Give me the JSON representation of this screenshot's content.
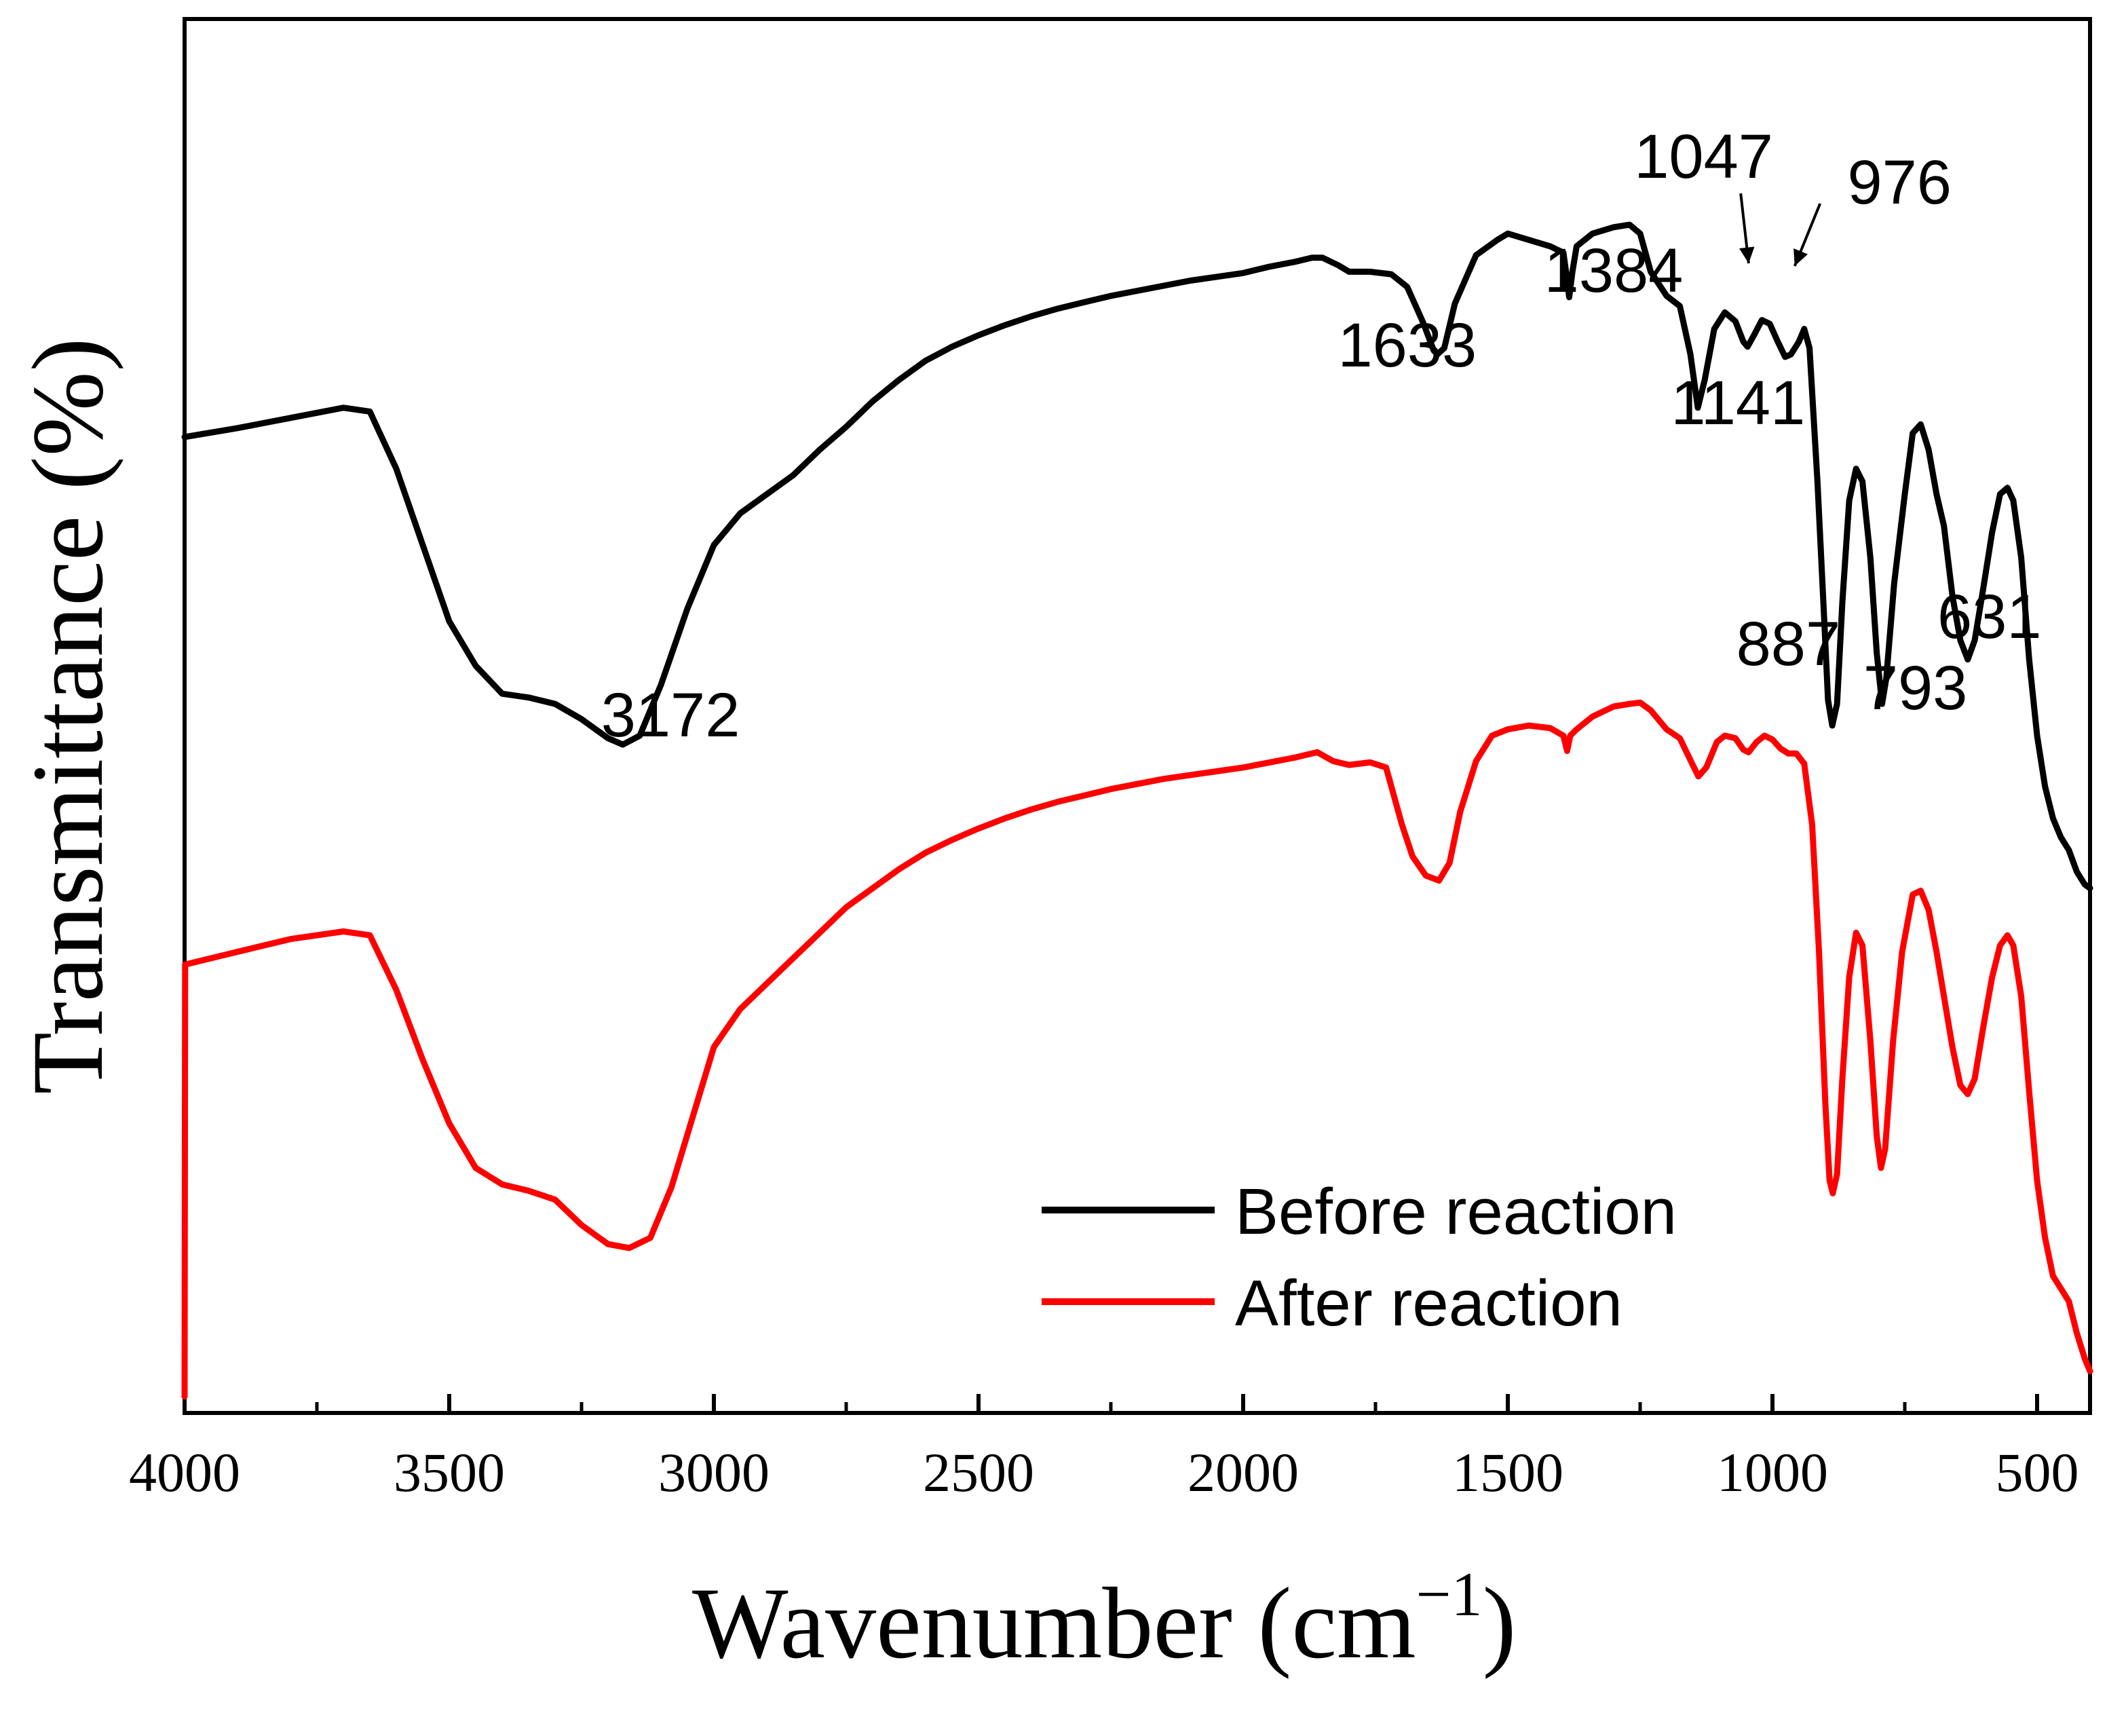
{
  "chart_data": {
    "type": "line",
    "xlabel": "Wavenumber (cm",
    "xlabel_sup": "−1",
    "xlabel_close": ")",
    "ylabel": "Transmittance (%)",
    "xlim": [
      4000,
      400
    ],
    "ylim": [
      0,
      100
    ],
    "x_reversed": true,
    "y_ticks_shown": false,
    "grid": false,
    "legend_placement": "lower-right",
    "x_ticks": [
      "4000",
      "3500",
      "3000",
      "2500",
      "2000",
      "1500",
      "1000",
      "500"
    ],
    "x_tick_values": [
      4000,
      3500,
      3000,
      2500,
      2000,
      1500,
      1000,
      500
    ],
    "series": [
      {
        "name": "Before reaction",
        "color": "#000000",
        "points": [
          [
            4000,
            75.5
          ],
          [
            3900,
            76.2
          ],
          [
            3800,
            77.0
          ],
          [
            3700,
            77.8
          ],
          [
            3650,
            77.5
          ],
          [
            3600,
            73
          ],
          [
            3550,
            67
          ],
          [
            3500,
            61
          ],
          [
            3450,
            57.5
          ],
          [
            3400,
            55.3
          ],
          [
            3350,
            55.0
          ],
          [
            3300,
            54.5
          ],
          [
            3250,
            53.3
          ],
          [
            3200,
            51.8
          ],
          [
            3172,
            51.3
          ],
          [
            3140,
            52.0
          ],
          [
            3100,
            56
          ],
          [
            3050,
            62
          ],
          [
            3000,
            67
          ],
          [
            2950,
            69.5
          ],
          [
            2900,
            71
          ],
          [
            2850,
            72.5
          ],
          [
            2800,
            74.5
          ],
          [
            2750,
            76.3
          ],
          [
            2700,
            78.3
          ],
          [
            2650,
            80
          ],
          [
            2600,
            81.5
          ],
          [
            2550,
            82.6
          ],
          [
            2500,
            83.5
          ],
          [
            2450,
            84.3
          ],
          [
            2400,
            85
          ],
          [
            2350,
            85.6
          ],
          [
            2300,
            86.1
          ],
          [
            2250,
            86.6
          ],
          [
            2200,
            87.0
          ],
          [
            2150,
            87.4
          ],
          [
            2100,
            87.8
          ],
          [
            2050,
            88.1
          ],
          [
            2000,
            88.4
          ],
          [
            1950,
            88.9
          ],
          [
            1900,
            89.3
          ],
          [
            1870,
            89.6
          ],
          [
            1850,
            89.6
          ],
          [
            1820,
            89.0
          ],
          [
            1800,
            88.5
          ],
          [
            1760,
            88.5
          ],
          [
            1720,
            88.3
          ],
          [
            1690,
            87.3
          ],
          [
            1660,
            84.5
          ],
          [
            1640,
            82.3
          ],
          [
            1633,
            82.0
          ],
          [
            1620,
            82.5
          ],
          [
            1600,
            86.0
          ],
          [
            1560,
            89.8
          ],
          [
            1520,
            91.0
          ],
          [
            1500,
            91.5
          ],
          [
            1460,
            91.0
          ],
          [
            1420,
            90.5
          ],
          [
            1395,
            90.0
          ],
          [
            1390,
            88.5
          ],
          [
            1384,
            86.5
          ],
          [
            1378,
            88.5
          ],
          [
            1370,
            90.5
          ],
          [
            1340,
            91.5
          ],
          [
            1300,
            92.0
          ],
          [
            1270,
            92.2
          ],
          [
            1250,
            91.5
          ],
          [
            1230,
            88.5
          ],
          [
            1200,
            86.6
          ],
          [
            1175,
            85.8
          ],
          [
            1155,
            82.0
          ],
          [
            1141,
            77.8
          ],
          [
            1128,
            80.0
          ],
          [
            1110,
            84.0
          ],
          [
            1090,
            85.3
          ],
          [
            1070,
            84.6
          ],
          [
            1055,
            83.0
          ],
          [
            1047,
            82.6
          ],
          [
            1035,
            83.5
          ],
          [
            1020,
            84.7
          ],
          [
            1005,
            84.4
          ],
          [
            990,
            83.0
          ],
          [
            976,
            81.8
          ],
          [
            965,
            82.0
          ],
          [
            950,
            83.0
          ],
          [
            940,
            84.0
          ],
          [
            930,
            82.5
          ],
          [
            915,
            72
          ],
          [
            902,
            61
          ],
          [
            895,
            54.8
          ],
          [
            887,
            52.8
          ],
          [
            878,
            54.5
          ],
          [
            868,
            62.5
          ],
          [
            855,
            70.5
          ],
          [
            842,
            73.0
          ],
          [
            830,
            72.0
          ],
          [
            815,
            66
          ],
          [
            803,
            58.5
          ],
          [
            793,
            54.5
          ],
          [
            785,
            56.5
          ],
          [
            770,
            64
          ],
          [
            750,
            71
          ],
          [
            735,
            75.8
          ],
          [
            720,
            76.5
          ],
          [
            705,
            74.5
          ],
          [
            690,
            71.0
          ],
          [
            676,
            68.5
          ],
          [
            660,
            63
          ],
          [
            645,
            59.5
          ],
          [
            631,
            58.0
          ],
          [
            618,
            59.5
          ],
          [
            602,
            63.5
          ],
          [
            585,
            68.0
          ],
          [
            570,
            71.0
          ],
          [
            556,
            71.5
          ],
          [
            545,
            70.5
          ],
          [
            530,
            66
          ],
          [
            515,
            58
          ],
          [
            500,
            52
          ],
          [
            485,
            48
          ],
          [
            470,
            45.5
          ],
          [
            455,
            44.0
          ],
          [
            440,
            43.0
          ],
          [
            425,
            41.3
          ],
          [
            410,
            40.3
          ],
          [
            400,
            40.0
          ]
        ]
      },
      {
        "name": "After reaction",
        "color": "#ff0000",
        "points": [
          [
            4000,
            0
          ],
          [
            3999,
            34.0
          ],
          [
            3900,
            35.0
          ],
          [
            3800,
            36.0
          ],
          [
            3700,
            36.6
          ],
          [
            3650,
            36.3
          ],
          [
            3600,
            32
          ],
          [
            3550,
            26.5
          ],
          [
            3500,
            21.5
          ],
          [
            3450,
            18.0
          ],
          [
            3400,
            16.7
          ],
          [
            3350,
            16.2
          ],
          [
            3300,
            15.5
          ],
          [
            3250,
            13.5
          ],
          [
            3200,
            12.0
          ],
          [
            3160,
            11.7
          ],
          [
            3120,
            12.5
          ],
          [
            3080,
            16.5
          ],
          [
            3040,
            22.0
          ],
          [
            3000,
            27.5
          ],
          [
            2950,
            30.5
          ],
          [
            2900,
            32.5
          ],
          [
            2850,
            34.5
          ],
          [
            2800,
            36.5
          ],
          [
            2750,
            38.5
          ],
          [
            2700,
            40.0
          ],
          [
            2650,
            41.5
          ],
          [
            2600,
            42.8
          ],
          [
            2550,
            43.8
          ],
          [
            2500,
            44.7
          ],
          [
            2450,
            45.5
          ],
          [
            2400,
            46.2
          ],
          [
            2350,
            46.8
          ],
          [
            2300,
            47.3
          ],
          [
            2250,
            47.8
          ],
          [
            2200,
            48.2
          ],
          [
            2150,
            48.6
          ],
          [
            2100,
            48.9
          ],
          [
            2050,
            49.2
          ],
          [
            2000,
            49.5
          ],
          [
            1950,
            49.9
          ],
          [
            1900,
            50.3
          ],
          [
            1860,
            50.7
          ],
          [
            1830,
            50.0
          ],
          [
            1800,
            49.7
          ],
          [
            1760,
            49.9
          ],
          [
            1730,
            49.5
          ],
          [
            1700,
            45.0
          ],
          [
            1680,
            42.5
          ],
          [
            1655,
            41.0
          ],
          [
            1630,
            40.6
          ],
          [
            1610,
            42.0
          ],
          [
            1590,
            46.0
          ],
          [
            1560,
            50.0
          ],
          [
            1530,
            52.0
          ],
          [
            1500,
            52.5
          ],
          [
            1460,
            52.8
          ],
          [
            1420,
            52.6
          ],
          [
            1395,
            52.0
          ],
          [
            1388,
            50.8
          ],
          [
            1382,
            52.0
          ],
          [
            1370,
            52.5
          ],
          [
            1340,
            53.5
          ],
          [
            1300,
            54.3
          ],
          [
            1270,
            54.5
          ],
          [
            1250,
            54.6
          ],
          [
            1230,
            54.0
          ],
          [
            1200,
            52.5
          ],
          [
            1175,
            51.8
          ],
          [
            1160,
            50.5
          ],
          [
            1140,
            48.8
          ],
          [
            1125,
            49.5
          ],
          [
            1105,
            51.5
          ],
          [
            1090,
            52.0
          ],
          [
            1070,
            51.8
          ],
          [
            1055,
            50.9
          ],
          [
            1045,
            50.7
          ],
          [
            1030,
            51.5
          ],
          [
            1015,
            52.0
          ],
          [
            1000,
            51.7
          ],
          [
            985,
            51.0
          ],
          [
            970,
            50.6
          ],
          [
            955,
            50.6
          ],
          [
            940,
            49.8
          ],
          [
            925,
            45.0
          ],
          [
            912,
            35
          ],
          [
            900,
            23
          ],
          [
            892,
            17
          ],
          [
            886,
            16.0
          ],
          [
            878,
            17.5
          ],
          [
            868,
            25
          ],
          [
            855,
            33
          ],
          [
            842,
            36.5
          ],
          [
            830,
            35.5
          ],
          [
            815,
            28
          ],
          [
            803,
            20.5
          ],
          [
            795,
            18.0
          ],
          [
            787,
            19.5
          ],
          [
            772,
            28
          ],
          [
            755,
            35
          ],
          [
            735,
            39.5
          ],
          [
            720,
            39.8
          ],
          [
            705,
            38.3
          ],
          [
            690,
            35.0
          ],
          [
            676,
            31.5
          ],
          [
            660,
            27.5
          ],
          [
            645,
            24.5
          ],
          [
            631,
            23.8
          ],
          [
            618,
            25.0
          ],
          [
            602,
            29.0
          ],
          [
            585,
            33.0
          ],
          [
            570,
            35.5
          ],
          [
            556,
            36.3
          ],
          [
            545,
            35.5
          ],
          [
            530,
            31.5
          ],
          [
            515,
            24.0
          ],
          [
            500,
            17.0
          ],
          [
            485,
            12.5
          ],
          [
            470,
            9.5
          ],
          [
            455,
            8.5
          ],
          [
            440,
            7.5
          ],
          [
            425,
            5.0
          ],
          [
            410,
            3.0
          ],
          [
            400,
            2.0
          ]
        ]
      }
    ],
    "annotations": [
      {
        "text": "3172",
        "x": 3172
      },
      {
        "text": "1633",
        "x": 1633
      },
      {
        "text": "1384",
        "x": 1384
      },
      {
        "text": "1047",
        "x": 1047
      },
      {
        "text": "976",
        "x": 976
      },
      {
        "text": "1141",
        "x": 1141
      },
      {
        "text": "887",
        "x": 887
      },
      {
        "text": "793",
        "x": 793
      },
      {
        "text": "631",
        "x": 631
      }
    ]
  }
}
